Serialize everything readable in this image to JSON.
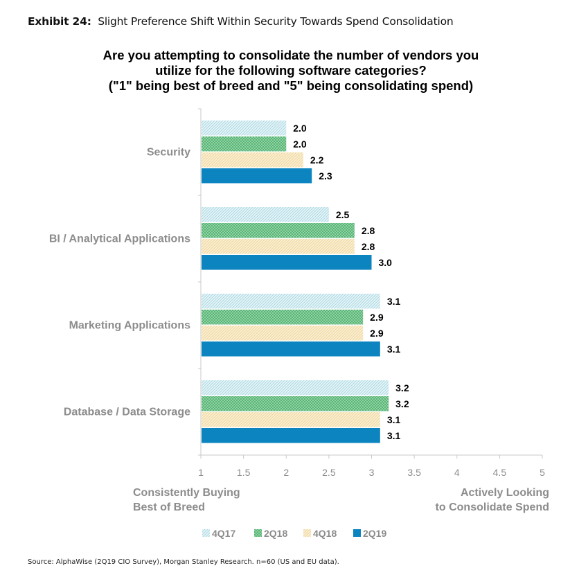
{
  "exhibit": {
    "label": "Exhibit 24:",
    "title": "Slight Preference Shift Within Security Towards Spend Consolidation"
  },
  "source": "Source: AlphaWise (2Q19 CIO Survey), Morgan Stanley Research. n=60 (US and EU data).",
  "chart_data": {
    "type": "bar",
    "orientation": "horizontal",
    "title": [
      "Are you attempting to consolidate the number of vendors you",
      "utilize for the following software categories?",
      "(\"1\" being best of breed and \"5\" being consolidating spend)"
    ],
    "categories": [
      "Security",
      "BI / Analytical Applications",
      "Marketing Applications",
      "Database / Data Storage"
    ],
    "series": [
      {
        "name": "4Q17",
        "values": [
          2.0,
          2.5,
          3.1,
          3.2
        ],
        "labels": [
          "2.0",
          "2.5",
          "3.1",
          "3.2"
        ],
        "color": "#cfe9ef",
        "pattern": "hatch"
      },
      {
        "name": "2Q18",
        "values": [
          2.0,
          2.8,
          2.9,
          3.2
        ],
        "labels": [
          "2.0",
          "2.8",
          "2.9",
          "3.2"
        ],
        "color": "#74c98e",
        "pattern": "crosshatch"
      },
      {
        "name": "4Q18",
        "values": [
          2.2,
          2.8,
          2.9,
          3.1
        ],
        "labels": [
          "2.2",
          "2.8",
          "2.9",
          "3.1"
        ],
        "color": "#f7e2b0",
        "pattern": "hatch"
      },
      {
        "name": "2Q19",
        "values": [
          2.3,
          3.0,
          3.1,
          3.1
        ],
        "labels": [
          "2.3",
          "3.0",
          "3.1",
          "3.1"
        ],
        "color": "#0b84c0",
        "pattern": "solid"
      }
    ],
    "xlim": [
      1,
      5
    ],
    "xticks": [
      "1",
      "1.5",
      "2",
      "2.5",
      "3",
      "3.5",
      "4",
      "4.5",
      "5"
    ],
    "xlabel_left": [
      "Consistently Buying",
      "Best of Breed"
    ],
    "xlabel_right": [
      "Actively Looking",
      "to Consolidate Spend"
    ],
    "grid": false,
    "legend_position": "bottom"
  }
}
